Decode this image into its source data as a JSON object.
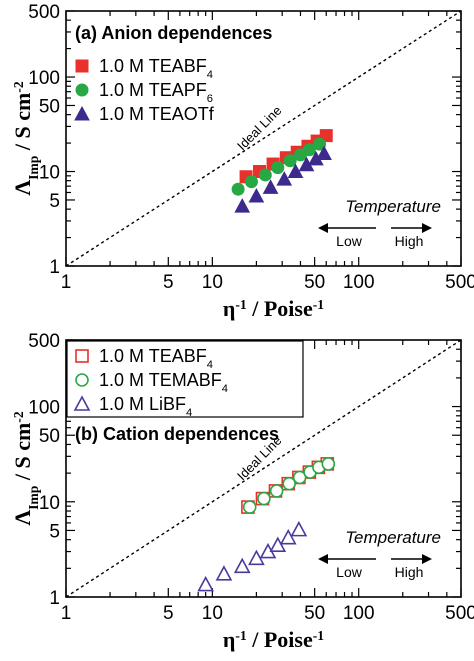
{
  "chart_data": [
    {
      "type": "scatter",
      "panel": "a",
      "title": "(a) Anion dependences",
      "xlabel": "η-1 / Poise-1",
      "ylabel": "ΛImp / S cm-2",
      "xscale": "log",
      "yscale": "log",
      "xlim": [
        1,
        500
      ],
      "ylim": [
        1,
        500
      ],
      "x_ticks": [
        "1",
        "5",
        "10",
        "50",
        "100",
        "500"
      ],
      "y_ticks": [
        "1",
        "5",
        "10",
        "50",
        "100",
        "500"
      ],
      "legend_position": "top-left",
      "reference_line": {
        "label": "Ideal Line",
        "style": "dashed",
        "equation": "y = x"
      },
      "annotation": {
        "title": "Temperature",
        "left": "Low",
        "right": "High"
      },
      "series": [
        {
          "name": "1.0 M TEABF4",
          "marker": "square",
          "fill": "filled",
          "color": "#e8312b",
          "x": [
            17,
            21,
            26,
            32,
            38,
            45,
            52,
            60
          ],
          "y": [
            8.8,
            10,
            12,
            14,
            16,
            18.5,
            21,
            24
          ]
        },
        {
          "name": "1.0 M TEAPF6",
          "marker": "circle",
          "fill": "filled",
          "color": "#27a844",
          "x": [
            15,
            18.5,
            23,
            28,
            34,
            40,
            46,
            54
          ],
          "y": [
            6.5,
            7.8,
            9.2,
            11,
            13,
            15,
            17,
            19.5
          ]
        },
        {
          "name": "1.0 M TEAOTf",
          "marker": "triangle",
          "fill": "filled",
          "color": "#3d2a8c",
          "x": [
            16,
            20,
            25,
            31,
            37,
            44,
            51,
            58
          ],
          "y": [
            4.3,
            5.5,
            6.8,
            8.3,
            10,
            11.8,
            13.6,
            15.5
          ]
        }
      ]
    },
    {
      "type": "scatter",
      "panel": "b",
      "title": "(b) Cation dependences",
      "xlabel": "η-1 / Poise-1",
      "ylabel": "ΛImp / S cm-2",
      "xscale": "log",
      "yscale": "log",
      "xlim": [
        1,
        500
      ],
      "ylim": [
        1,
        500
      ],
      "x_ticks": [
        "1",
        "5",
        "10",
        "50",
        "100",
        "500"
      ],
      "y_ticks": [
        "1",
        "5",
        "10",
        "50",
        "100",
        "500"
      ],
      "legend_position": "top-left",
      "reference_line": {
        "label": "Ideal Line",
        "style": "dashed",
        "equation": "y = x"
      },
      "annotation": {
        "title": "Temperature",
        "left": "Low",
        "right": "High"
      },
      "series": [
        {
          "name": "1.0 M TEABF4",
          "marker": "square",
          "fill": "open",
          "color": "#e8312b",
          "x": [
            17.5,
            22,
            27,
            33,
            39,
            46,
            53,
            61
          ],
          "y": [
            8.8,
            10.8,
            13,
            15.5,
            18,
            20.5,
            23,
            25
          ]
        },
        {
          "name": "1.0 M TEMABF4",
          "marker": "circle",
          "fill": "open",
          "color": "#27a844",
          "x": [
            18,
            22.5,
            27.5,
            33.5,
            39.5,
            46.5,
            53.5,
            62
          ],
          "y": [
            8.8,
            10.8,
            13,
            15.5,
            18,
            20.5,
            23,
            25
          ]
        },
        {
          "name": "1.0 M LiBF4",
          "marker": "triangle",
          "fill": "open",
          "color": "#4b3a9c",
          "x": [
            9,
            12,
            16,
            20,
            24,
            28,
            33,
            39
          ],
          "y": [
            1.35,
            1.75,
            2.1,
            2.55,
            3,
            3.5,
            4.2,
            5.1
          ]
        }
      ]
    }
  ]
}
